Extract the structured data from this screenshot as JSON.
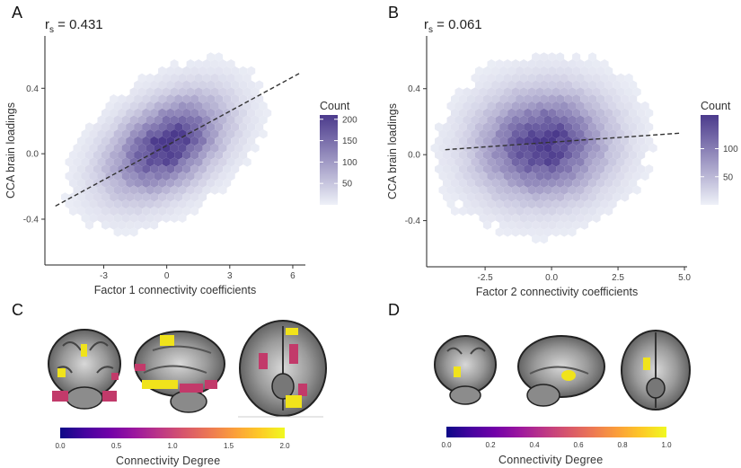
{
  "panels": {
    "A": {
      "letter": "A",
      "rs_label": "r",
      "rs_sub": "s",
      "rs_value": " = 0.431"
    },
    "B": {
      "letter": "B",
      "rs_label": "r",
      "rs_sub": "s",
      "rs_value": " = 0.061"
    },
    "C": {
      "letter": "C",
      "colorbar_title": "Connectivity Degree"
    },
    "D": {
      "letter": "D",
      "colorbar_title": "Connectivity Degree"
    }
  },
  "colors": {
    "hex_dark": "#4b3a8c",
    "hex_light": "#eef1f8",
    "fit_line": "#333333",
    "magma_low": "#0d0887",
    "magma_high": "#f0f921"
  },
  "chart_data": [
    {
      "type": "hexbin",
      "panel": "A",
      "xlabel": "Factor 1 connectivity coefficients",
      "ylabel": "CCA brain loadings",
      "xticks": [
        -3,
        0,
        3,
        6
      ],
      "xtick_labels": [
        "-3",
        "0",
        "3",
        "6"
      ],
      "yticks": [
        -0.4,
        0.0,
        0.4
      ],
      "ytick_labels": [
        "-0.4",
        "0.0",
        "0.4"
      ],
      "xlim": [
        -5.8,
        6.6
      ],
      "ylim": [
        -0.68,
        0.72
      ],
      "fit_line": {
        "x": [
          -5.3,
          6.3
        ],
        "y": [
          -0.32,
          0.49
        ]
      },
      "density_center": [
        0.0,
        0.05
      ],
      "density_spread": [
        1.7,
        0.19
      ],
      "density_correlation": 0.43,
      "legend": {
        "title": "Count",
        "ticks": [
          50,
          100,
          150,
          200
        ],
        "tick_labels": [
          "50",
          "100",
          "150",
          "200"
        ],
        "max": 210
      }
    },
    {
      "type": "hexbin",
      "panel": "B",
      "xlabel": "Factor 2 connectivity coefficients",
      "ylabel": "CCA brain loadings",
      "xticks": [
        -2.5,
        0.0,
        2.5,
        5.0
      ],
      "xtick_labels": [
        "-2.5",
        "0.0",
        "2.5",
        "5.0"
      ],
      "yticks": [
        -0.4,
        0.0,
        0.4
      ],
      "ytick_labels": [
        "-0.4",
        "0.0",
        "0.4"
      ],
      "xlim": [
        -4.7,
        5.1
      ],
      "ylim": [
        -0.68,
        0.72
      ],
      "fit_line": {
        "x": [
          -4.0,
          4.8
        ],
        "y": [
          0.03,
          0.13
        ]
      },
      "density_center": [
        -0.3,
        0.06
      ],
      "density_spread": [
        1.5,
        0.2
      ],
      "density_correlation": 0.06,
      "legend": {
        "title": "Count",
        "ticks": [
          50,
          100
        ],
        "tick_labels": [
          "50",
          "100"
        ],
        "max": 160
      }
    },
    {
      "type": "colorbar",
      "panel": "C",
      "ticks": [
        0.0,
        0.5,
        1.0,
        1.5,
        2.0
      ],
      "tick_labels": [
        "0.0",
        "0.5",
        "1.0",
        "1.5",
        "2.0"
      ],
      "range": [
        0.0,
        2.0
      ]
    },
    {
      "type": "colorbar",
      "panel": "D",
      "ticks": [
        0.0,
        0.2,
        0.4,
        0.6,
        0.8,
        1.0
      ],
      "tick_labels": [
        "0.0",
        "0.2",
        "0.4",
        "0.6",
        "0.8",
        "1.0"
      ],
      "range": [
        0.0,
        1.0
      ]
    }
  ]
}
